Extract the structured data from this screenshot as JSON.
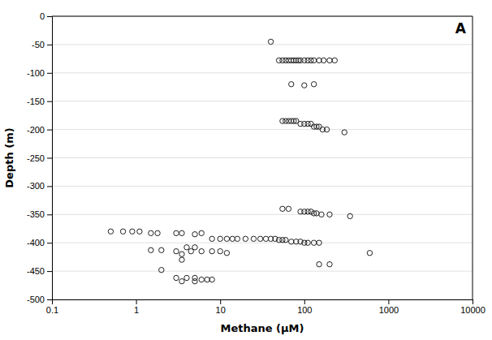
{
  "chart_data": {
    "type": "scatter",
    "title": "A",
    "xlabel": "Methane (μM)",
    "ylabel": "Depth (m)",
    "log": "x",
    "grid": true,
    "color": "#222222",
    "marker": "circle",
    "xlim": [
      0.1,
      10000
    ],
    "ylim": [
      -500,
      0
    ],
    "xticks": [
      0.1,
      1,
      10,
      100,
      1000,
      10000
    ],
    "yticks": [
      0,
      -50,
      -100,
      -150,
      -200,
      -250,
      -300,
      -350,
      -400,
      -450,
      -500
    ],
    "x": [
      40,
      50,
      55,
      60,
      65,
      70,
      75,
      80,
      85,
      90,
      100,
      110,
      120,
      130,
      150,
      170,
      200,
      230,
      70,
      100,
      130,
      55,
      60,
      65,
      70,
      75,
      80,
      90,
      100,
      110,
      120,
      130,
      140,
      150,
      165,
      185,
      300,
      55,
      65,
      90,
      100,
      110,
      120,
      130,
      140,
      160,
      200,
      350,
      0.5,
      0.7,
      0.9,
      1.1,
      1.5,
      1.8,
      3.0,
      3.5,
      5,
      6,
      8,
      10,
      12,
      14,
      16,
      20,
      25,
      30,
      35,
      40,
      45,
      50,
      55,
      60,
      70,
      80,
      90,
      100,
      110,
      130,
      150,
      3,
      3.5,
      4.5,
      6,
      8,
      10,
      12,
      600,
      150,
      200,
      3,
      4,
      5,
      6,
      7,
      8,
      3.5,
      5,
      1.5,
      2.0,
      4,
      5,
      3.5,
      2.0
    ],
    "values": [
      -45,
      -78,
      -78,
      -78,
      -78,
      -78,
      -78,
      -78,
      -78,
      -78,
      -78,
      -78,
      -78,
      -78,
      -78,
      -78,
      -78,
      -78,
      -120,
      -122,
      -120,
      -185,
      -185,
      -185,
      -185,
      -185,
      -185,
      -190,
      -190,
      -190,
      -190,
      -195,
      -195,
      -195,
      -200,
      -200,
      -205,
      -340,
      -340,
      -345,
      -345,
      -345,
      -345,
      -348,
      -348,
      -350,
      -350,
      -353,
      -380,
      -380,
      -380,
      -380,
      -383,
      -383,
      -383,
      -383,
      -385,
      -383,
      -393,
      -393,
      -393,
      -393,
      -393,
      -393,
      -393,
      -393,
      -393,
      -393,
      -393,
      -395,
      -395,
      -395,
      -398,
      -398,
      -398,
      -400,
      -400,
      -400,
      -400,
      -415,
      -420,
      -415,
      -415,
      -415,
      -415,
      -418,
      -418,
      -438,
      -438,
      -462,
      -462,
      -462,
      -465,
      -465,
      -465,
      -468,
      -468,
      -413,
      -413,
      -408,
      -408,
      -430,
      -448
    ]
  }
}
